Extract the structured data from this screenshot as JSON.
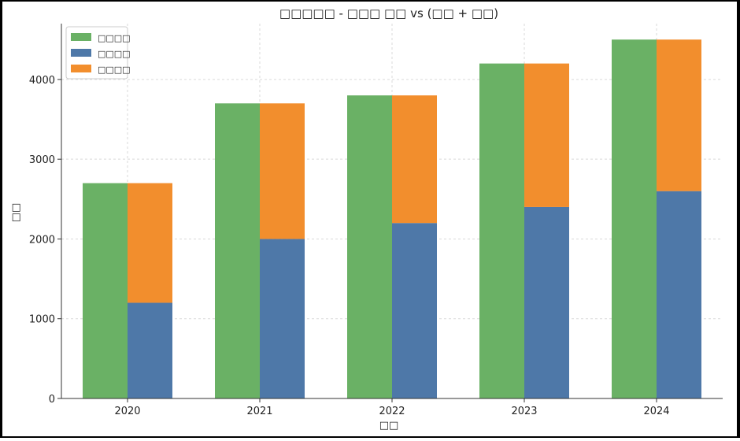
{
  "chart_data": {
    "type": "bar",
    "title": "□□□□□ - □□□ □□ vs (□□ + □□)",
    "xlabel": "□□",
    "ylabel": "□□",
    "categories": [
      "2020",
      "2021",
      "2022",
      "2023",
      "2024"
    ],
    "ylim": [
      0,
      4700
    ],
    "yticks": [
      0,
      1000,
      2000,
      3000,
      4000
    ],
    "grid": true,
    "legend_position": "top-left",
    "series": [
      {
        "name": "□□□□",
        "color": "#6ab165",
        "group": "left",
        "values": [
          2700,
          3700,
          3800,
          4200,
          4500
        ]
      },
      {
        "name": "□□□□",
        "color": "#4e78a8",
        "group": "right-stack",
        "values": [
          1200,
          2000,
          2200,
          2400,
          2600
        ]
      },
      {
        "name": "□□□□",
        "color": "#f28e2d",
        "group": "right-stack",
        "values": [
          1500,
          1700,
          1600,
          1800,
          1900
        ]
      }
    ]
  }
}
